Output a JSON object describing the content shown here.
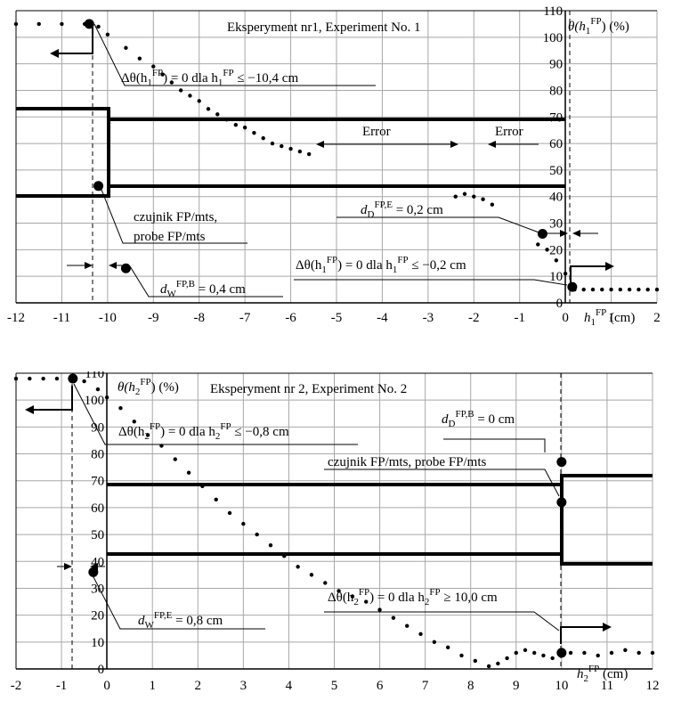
{
  "chart_data": [
    {
      "type": "scatter",
      "title": "Eksperyment nr1, Experiment  No. 1",
      "xlabel": "h1FP (cm)",
      "ylabel": "θ(h1FP) (%)",
      "xlim": [
        -12,
        2
      ],
      "ylim": [
        0,
        110
      ],
      "grid": true,
      "x_ticks": [
        "-12",
        "-11",
        "-10",
        "-9",
        "-8",
        "-7",
        "-6",
        "-5",
        "-4",
        "-3",
        "-2",
        "-1",
        "0",
        "1",
        "2"
      ],
      "y_ticks": [
        "0",
        "10",
        "20",
        "30",
        "40",
        "50",
        "60",
        "70",
        "80",
        "90",
        "100",
        "110"
      ],
      "series": [
        {
          "style": "dotted",
          "x": [
            -12.0,
            -11.5,
            -11.0,
            -10.5,
            -10.2,
            -10.0,
            -9.6,
            -9.3,
            -9.0,
            -8.8,
            -8.6,
            -8.4,
            -8.2,
            -8.0,
            -7.8,
            -7.6,
            -7.4,
            -7.2,
            -7.0,
            -6.8,
            -6.6,
            -6.4,
            -6.2,
            -6.0,
            -5.8,
            -5.6
          ],
          "y": [
            105,
            105,
            105,
            105,
            104,
            101,
            96,
            92,
            89,
            86,
            83,
            80,
            78,
            76,
            73,
            71,
            69,
            67,
            66,
            64,
            62,
            60,
            59,
            58,
            57,
            56
          ]
        },
        {
          "style": "dotted",
          "x": [
            -2.4,
            -2.2,
            -2.0,
            -1.8,
            -1.6
          ],
          "y": [
            40,
            41,
            40,
            39,
            37
          ]
        },
        {
          "style": "dotted",
          "x": [
            -0.6,
            -0.4,
            -0.2,
            0.0
          ],
          "y": [
            22,
            20,
            16,
            11
          ]
        },
        {
          "style": "dotted",
          "x": [
            0.2,
            0.4,
            0.6,
            0.8,
            1.0,
            1.2,
            1.4,
            1.6,
            1.8,
            2.0
          ],
          "y": [
            5,
            5,
            5,
            5,
            5,
            5,
            5,
            5,
            5,
            5
          ]
        }
      ],
      "markers": [
        {
          "x": -10.4,
          "y": 105
        },
        {
          "x": -10.2,
          "y": 44
        },
        {
          "x": -9.6,
          "y": 13
        },
        {
          "x": -0.5,
          "y": 26
        },
        {
          "x": 0.15,
          "y": 6
        }
      ],
      "annotations": {
        "eq1_pre": "Δθ(h",
        "eq1_sub": "1",
        "eq1_sup": "FP",
        "eq1_rest": ") = 0 dla h",
        "eq1_sub2": "1",
        "eq1_sup2": "FP",
        "eq1_end": " ≤ −10,4 cm",
        "error1": "Error",
        "error2": "Error",
        "probe_line1": "czujnik FP/mts,",
        "probe_line2": "probe FP/mts",
        "dd_pre": "d",
        "dd_sub": "D",
        "dd_sup": "FP,E",
        "dd_rest": " = 0,2 cm",
        "eq2_pre": "Δθ(h",
        "eq2_sub": "1",
        "eq2_sup": "FP",
        "eq2_rest": ") = 0 dla h",
        "eq2_sub2": "1",
        "eq2_sup2": "FP",
        "eq2_end": " ≤ −0,2 cm",
        "dw_pre": "d",
        "dw_sub": "W",
        "dw_sup": "FP,B",
        "dw_rest": " = 0,4 cm",
        "xl_pre": "h",
        "xl_sub": "1",
        "xl_sup": "FP",
        "xl_rest": " (cm)",
        "yl_pre": "θ(h",
        "yl_sub": "1",
        "yl_sup": "FP",
        "yl_rest": ")  (%)"
      }
    },
    {
      "type": "scatter",
      "title": "Eksperyment nr 2, Experiment  No. 2",
      "xlabel": "h2FP (cm)",
      "ylabel": "θ(h2FP) (%)",
      "xlim": [
        -2,
        12
      ],
      "ylim": [
        0,
        110
      ],
      "grid": true,
      "x_ticks": [
        "-2",
        "-1",
        "0",
        "1",
        "2",
        "3",
        "4",
        "5",
        "6",
        "7",
        "8",
        "9",
        "10",
        "11",
        "12"
      ],
      "y_ticks": [
        "0",
        "10",
        "20",
        "30",
        "40",
        "50",
        "60",
        "70",
        "80",
        "90",
        "100",
        "110"
      ],
      "series": [
        {
          "style": "dotted",
          "x": [
            -2.0,
            -1.7,
            -1.4,
            -1.1,
            -0.8,
            -0.5,
            -0.2,
            0.0,
            0.3,
            0.6,
            0.9,
            1.2,
            1.5,
            1.8,
            2.1,
            2.4,
            2.7,
            3.0,
            3.3,
            3.6,
            3.9,
            4.2,
            4.5,
            4.8,
            5.1,
            5.4,
            5.7,
            6.0,
            6.3,
            6.6,
            6.9,
            7.2,
            7.5,
            7.8,
            8.1,
            8.4,
            8.6,
            8.8,
            9.0,
            9.2,
            9.4,
            9.6,
            9.8
          ],
          "y": [
            108,
            108,
            108,
            108,
            108,
            107,
            104,
            101,
            97,
            92,
            87,
            83,
            78,
            73,
            68,
            63,
            58,
            54,
            50,
            46,
            42,
            38,
            35,
            32,
            29,
            27,
            25,
            22,
            19,
            16,
            13,
            10,
            8,
            5,
            3,
            1,
            2,
            4,
            6,
            7,
            6,
            5,
            4
          ]
        },
        {
          "style": "dotted",
          "x": [
            10.2,
            10.5,
            10.8,
            11.1,
            11.4,
            11.7,
            12.0
          ],
          "y": [
            6,
            6,
            5,
            6,
            7,
            6,
            6
          ]
        }
      ],
      "markers": [
        {
          "x": -0.75,
          "y": 108
        },
        {
          "x": -0.3,
          "y": 36
        },
        {
          "x": 10.0,
          "y": 77
        },
        {
          "x": 10.0,
          "y": 62
        },
        {
          "x": 10.0,
          "y": 6
        }
      ],
      "annotations": {
        "eq1_pre": "Δθ(h",
        "eq1_sub": "2",
        "eq1_sup": "FP",
        "eq1_rest": ") = 0 dla h",
        "eq1_sub2": "2",
        "eq1_sup2": "FP",
        "eq1_end": " ≤ −0,8 cm",
        "dd_pre": "d",
        "dd_sub": "D",
        "dd_sup": "FP,B",
        "dd_rest": " = 0 cm",
        "probe": "czujnik FP/mts, probe FP/mts",
        "eq2_pre": "Δθ(h",
        "eq2_sub": "2",
        "eq2_sup": "FP",
        "eq2_rest": ") = 0 dla h",
        "eq2_sub2": "2",
        "eq2_sup2": "FP",
        "eq2_end": " ≥ 10,0 cm",
        "dw_pre": "d",
        "dw_sub": "W",
        "dw_sup": "FP,E",
        "dw_rest": " = 0,8 cm",
        "xl_pre": "h",
        "xl_sub": "2",
        "xl_sup": "FP",
        "xl_rest": " (cm)",
        "yl_pre": "θ(h",
        "yl_sub": "2",
        "yl_sup": "FP",
        "yl_rest": ") (%)"
      }
    }
  ]
}
